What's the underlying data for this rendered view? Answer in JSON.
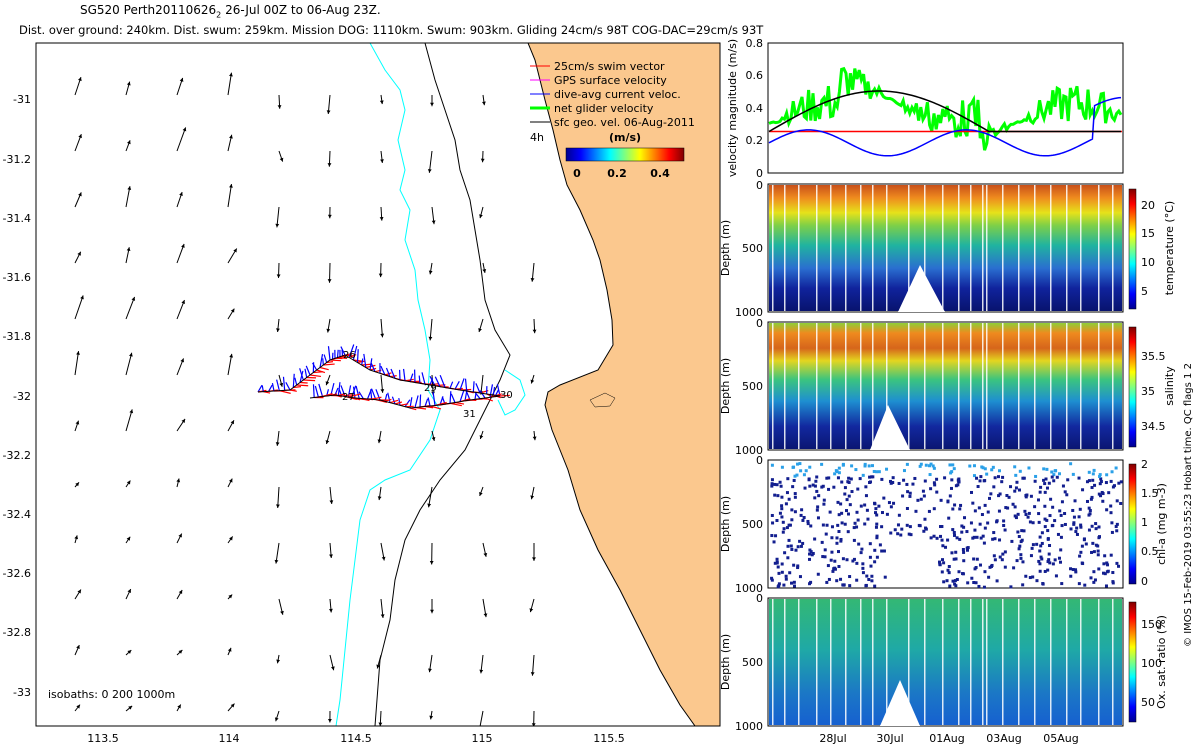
{
  "header": {
    "title_main": "SG520 Perth20110626",
    "title_sub": "2",
    "title_rest": " 26-Jul 00Z to 06-Aug 23Z.",
    "stats": "Dist. over ground: 240km. Dist. swum: 259km. Mission DOG: 1110km. Swum: 903km. Gliding 24cm/s 98T COG-DAC=29cm/s 93T"
  },
  "map": {
    "x_ticks": [
      "113.5",
      "114",
      "114.5",
      "115",
      "115.5"
    ],
    "y_ticks": [
      "-31",
      "-31.2",
      "-31.4",
      "-31.6",
      "-31.8",
      "-32",
      "-32.2",
      "-32.4",
      "-32.6",
      "-32.8",
      "-33"
    ],
    "legend": [
      "25cm/s swim vector",
      "GPS surface velocity",
      "dive-avg current veloc.",
      "net glider velocity",
      "sfc geo. vel. 06-Aug-2011"
    ],
    "legend_colors": [
      "#ff0000",
      "#ff00ff",
      "#0000ff",
      "#00ff00",
      "#000000"
    ],
    "colorbar_title": "(m/s)",
    "colorbar_ticks": [
      "0",
      "0.2",
      "0.4"
    ],
    "marker_4h": "4h",
    "isobaths_label": "isobaths: 0   200  1000m",
    "track_labels": [
      "26",
      "27",
      "29",
      "31",
      "30"
    ],
    "land_color": "#fbc88e",
    "isobath_200_color": "#00ffff"
  },
  "panels": {
    "velocity": {
      "ylabel": "velocity magnitude (m/s)",
      "y_ticks": [
        "0",
        "0.2",
        "0.4",
        "0.6",
        "0.8"
      ]
    },
    "temperature": {
      "ylabel": "Depth (m)",
      "y_ticks": [
        "0",
        "500",
        "1000"
      ],
      "cbar_label": "temperature (°C)",
      "cbar_ticks": [
        "5",
        "10",
        "15",
        "20"
      ]
    },
    "salinity": {
      "ylabel": "Depth (m)",
      "y_ticks": [
        "0",
        "500",
        "1000"
      ],
      "cbar_label": "salinity",
      "cbar_ticks": [
        "34.5",
        "35",
        "35.5"
      ]
    },
    "chla": {
      "ylabel": "Depth (m)",
      "y_ticks": [
        "0",
        "500",
        "1000"
      ],
      "cbar_label": "chl-a (mg m-3)",
      "cbar_ticks": [
        "0",
        "0.5",
        "1",
        "1.5",
        "2"
      ]
    },
    "oxygen": {
      "ylabel": "Depth (m)",
      "y_ticks": [
        "0",
        "500",
        "1000"
      ],
      "cbar_label": "Ox. sat. ratio (%)",
      "cbar_ticks": [
        "50",
        "100",
        "150"
      ]
    },
    "x_ticks": [
      "28Jul",
      "30Jul",
      "01Aug",
      "03Aug",
      "05Aug"
    ]
  },
  "footer": {
    "imos": "© IMOS 15-Feb-2019 03:55:23 Hobart time. QC flags 1  2"
  }
}
